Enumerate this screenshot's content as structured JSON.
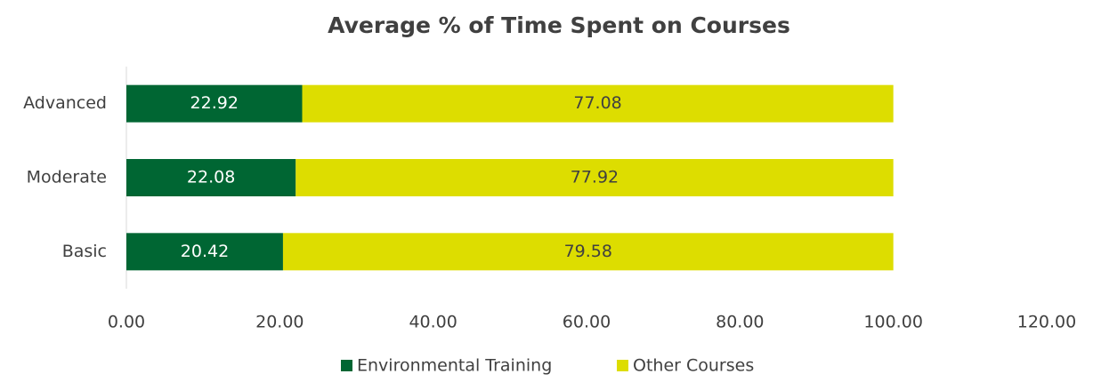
{
  "chart_data": {
    "type": "stacked_barh",
    "title": "Average % of Time Spent on Courses",
    "categories": [
      "Advanced",
      "Moderate",
      "Basic"
    ],
    "series": [
      {
        "name": "Environmental Training",
        "color": "#006633",
        "values": [
          22.92,
          22.08,
          20.42
        ]
      },
      {
        "name": "Other Courses",
        "color": "#dddd00",
        "values": [
          77.08,
          77.92,
          79.58
        ]
      }
    ],
    "xlim": [
      0,
      120
    ],
    "xticks": [
      {
        "value": 0,
        "label": "0.00"
      },
      {
        "value": 20,
        "label": "20.00"
      },
      {
        "value": 40,
        "label": "40.00"
      },
      {
        "value": 60,
        "label": "60.00"
      },
      {
        "value": 80,
        "label": "80.00"
      },
      {
        "value": 100,
        "label": "100.00"
      },
      {
        "value": 120,
        "label": "120.00"
      }
    ],
    "legend": "bottom"
  }
}
